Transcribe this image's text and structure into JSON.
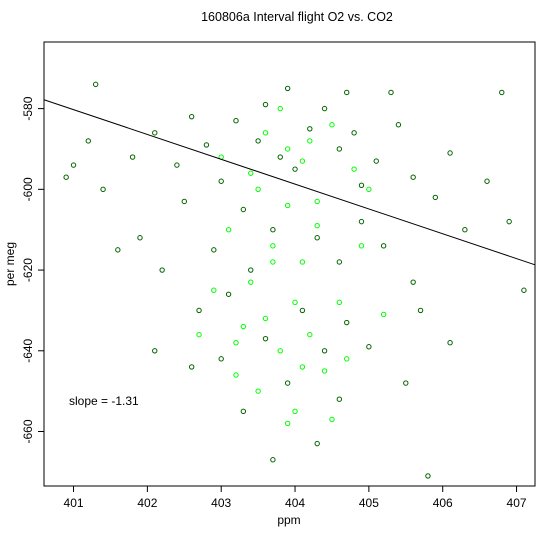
{
  "chart_data": {
    "type": "scatter",
    "title": "160806a   Interval flight O2 vs. CO2",
    "xlabel": "ppm",
    "ylabel": "per meg",
    "xlim": [
      400.6,
      407.25
    ],
    "ylim": [
      -673.5,
      -563.5
    ],
    "x_ticks": [
      401,
      402,
      403,
      404,
      405,
      406,
      407
    ],
    "y_ticks": [
      -660,
      -640,
      -620,
      -600,
      -580
    ],
    "colors": {
      "dark": "#006400",
      "light": "#00ff00",
      "line": "#000000"
    },
    "regression_line": {
      "slope": -1.31,
      "points": [
        [
          400.6,
          -577.8
        ],
        [
          407.25,
          -618.7
        ]
      ]
    },
    "annotation": "slope =  -1.31",
    "series": [
      {
        "color": "dark",
        "points": [
          [
            403.5,
            -588
          ],
          [
            403.8,
            -592
          ],
          [
            404.2,
            -585
          ],
          [
            404.6,
            -590
          ],
          [
            403.2,
            -583
          ],
          [
            404.0,
            -595
          ],
          [
            404.8,
            -586
          ],
          [
            405.1,
            -593
          ],
          [
            402.8,
            -589
          ],
          [
            403.6,
            -579
          ],
          [
            404.4,
            -580
          ],
          [
            405.4,
            -584
          ],
          [
            402.4,
            -594
          ],
          [
            403.0,
            -598
          ],
          [
            404.9,
            -599
          ],
          [
            405.6,
            -597
          ],
          [
            401.8,
            -592
          ],
          [
            402.1,
            -586
          ],
          [
            403.9,
            -575
          ],
          [
            404.7,
            -576
          ],
          [
            405.3,
            -576
          ],
          [
            402.6,
            -582
          ],
          [
            401.4,
            -600
          ],
          [
            401.2,
            -588
          ],
          [
            406.1,
            -591
          ],
          [
            405.9,
            -602
          ],
          [
            403.3,
            -605
          ],
          [
            403.7,
            -610
          ],
          [
            404.3,
            -612
          ],
          [
            404.9,
            -608
          ],
          [
            402.9,
            -615
          ],
          [
            403.4,
            -620
          ],
          [
            404.6,
            -618
          ],
          [
            405.2,
            -614
          ],
          [
            402.2,
            -620
          ],
          [
            403.1,
            -626
          ],
          [
            404.1,
            -630
          ],
          [
            404.7,
            -633
          ],
          [
            403.6,
            -637
          ],
          [
            404.4,
            -640
          ],
          [
            403.0,
            -642
          ],
          [
            405.0,
            -639
          ],
          [
            402.6,
            -644
          ],
          [
            403.9,
            -648
          ],
          [
            404.6,
            -652
          ],
          [
            403.3,
            -655
          ],
          [
            402.1,
            -640
          ],
          [
            405.6,
            -623
          ],
          [
            406.3,
            -610
          ],
          [
            406.6,
            -598
          ],
          [
            400.9,
            -597
          ],
          [
            401.0,
            -594
          ],
          [
            401.3,
            -574
          ],
          [
            406.8,
            -576
          ],
          [
            405.8,
            -671
          ],
          [
            404.3,
            -663
          ],
          [
            403.7,
            -667
          ],
          [
            402.5,
            -603
          ],
          [
            401.9,
            -612
          ],
          [
            405.7,
            -630
          ],
          [
            406.1,
            -638
          ],
          [
            402.7,
            -630
          ],
          [
            401.6,
            -615
          ],
          [
            406.9,
            -608
          ],
          [
            407.1,
            -625
          ],
          [
            405.5,
            -648
          ]
        ]
      },
      {
        "color": "light",
        "points": [
          [
            403.6,
            -586
          ],
          [
            403.9,
            -590
          ],
          [
            404.1,
            -593
          ],
          [
            403.4,
            -596
          ],
          [
            404.5,
            -584
          ],
          [
            403.8,
            -580
          ],
          [
            404.2,
            -588
          ],
          [
            403.0,
            -592
          ],
          [
            404.8,
            -595
          ],
          [
            403.5,
            -600
          ],
          [
            403.9,
            -604
          ],
          [
            404.3,
            -609
          ],
          [
            403.7,
            -614
          ],
          [
            404.1,
            -618
          ],
          [
            403.4,
            -623
          ],
          [
            404.0,
            -628
          ],
          [
            403.6,
            -632
          ],
          [
            404.2,
            -636
          ],
          [
            403.8,
            -640
          ],
          [
            404.4,
            -645
          ],
          [
            403.2,
            -638
          ],
          [
            404.7,
            -642
          ],
          [
            403.5,
            -650
          ],
          [
            404.0,
            -655
          ],
          [
            404.5,
            -657
          ],
          [
            403.9,
            -658
          ],
          [
            404.3,
            -603
          ],
          [
            403.1,
            -610
          ],
          [
            405.0,
            -600
          ],
          [
            402.9,
            -625
          ],
          [
            403.3,
            -634
          ],
          [
            404.6,
            -628
          ],
          [
            403.7,
            -618
          ],
          [
            404.9,
            -614
          ],
          [
            403.2,
            -646
          ],
          [
            404.1,
            -644
          ],
          [
            402.7,
            -636
          ],
          [
            405.2,
            -631
          ]
        ]
      }
    ]
  }
}
